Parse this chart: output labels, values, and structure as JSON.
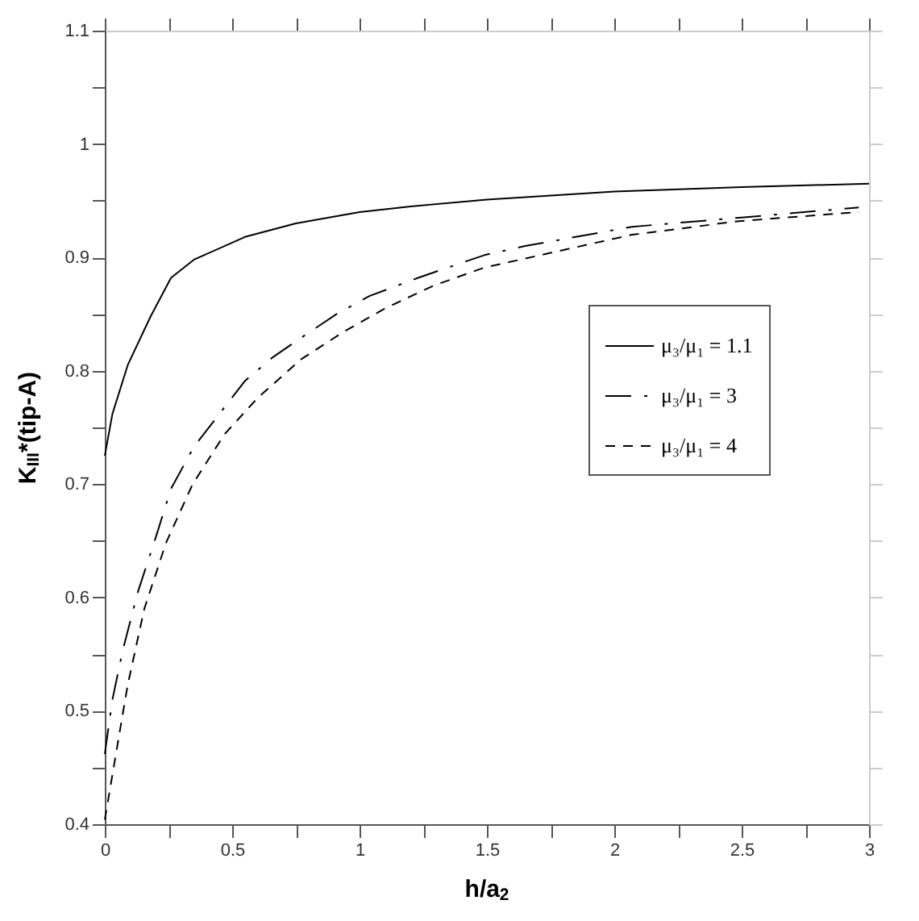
{
  "chart_data": {
    "type": "line",
    "xlabel": "h/a$_{2}$",
    "ylabel": "K$_{III}$*(tip-A)",
    "xlim": [
      0,
      3
    ],
    "ylim": [
      0.4,
      1.1
    ],
    "xticks": [
      0,
      {
        "value": 0.25,
        "label": null
      },
      0.5,
      {
        "value": 0.75,
        "label": null
      },
      1,
      {
        "value": 1.25,
        "label": null
      },
      1.5,
      {
        "value": 1.75,
        "label": null
      },
      2,
      {
        "value": 2.25,
        "label": null
      },
      2.5,
      {
        "value": 2.75,
        "label": null
      },
      3
    ],
    "yticks": [
      0.4,
      {
        "value": 0.45,
        "label": null
      },
      0.5,
      {
        "value": 0.55,
        "label": null
      },
      0.6,
      {
        "value": 0.65,
        "label": null
      },
      0.7,
      {
        "value": 0.75,
        "label": null
      },
      0.8,
      {
        "value": 0.85,
        "label": null
      },
      0.9,
      {
        "value": 0.95,
        "label": null
      },
      1,
      {
        "value": 1.05,
        "label": null
      },
      1.1
    ],
    "grid": false,
    "legend": "right",
    "marker": "none",
    "series": [
      {
        "name": "μ₃/μ₁ = 1.1",
        "color": "#000000",
        "line_style": "solid",
        "x": [
          0,
          0.03,
          0.09,
          0.18,
          0.26,
          0.35,
          0.55,
          0.75,
          1.0,
          1.2,
          1.5,
          2.0,
          2.5,
          3.0
        ],
        "values": [
          0.725,
          0.762,
          0.805,
          0.848,
          0.882,
          0.898,
          0.918,
          0.93,
          0.94,
          0.945,
          0.951,
          0.958,
          0.962,
          0.965
        ]
      },
      {
        "name": "μ₃/μ₁ = 3",
        "color": "#000000",
        "line_style": "dashdot",
        "x": [
          0,
          0.03,
          0.07,
          0.13,
          0.2,
          0.26,
          0.35,
          0.45,
          0.55,
          0.66,
          0.77,
          0.91,
          1.04,
          1.23,
          1.49,
          1.65,
          2.07,
          2.49,
          2.96
        ],
        "values": [
          0.462,
          0.51,
          0.553,
          0.605,
          0.653,
          0.696,
          0.733,
          0.762,
          0.791,
          0.812,
          0.829,
          0.85,
          0.866,
          0.882,
          0.902,
          0.91,
          0.927,
          0.935,
          0.944
        ]
      },
      {
        "name": "μ₃/μ₁ = 4",
        "color": "#000000",
        "line_style": "dashed",
        "x": [
          0,
          0.04,
          0.09,
          0.155,
          0.24,
          0.345,
          0.47,
          0.6,
          0.77,
          0.935,
          1.1,
          1.29,
          1.49,
          2.07,
          2.49,
          2.96
        ],
        "values": [
          0.404,
          0.457,
          0.523,
          0.59,
          0.648,
          0.7,
          0.744,
          0.776,
          0.81,
          0.834,
          0.855,
          0.875,
          0.891,
          0.92,
          0.932,
          0.94
        ]
      }
    ]
  }
}
